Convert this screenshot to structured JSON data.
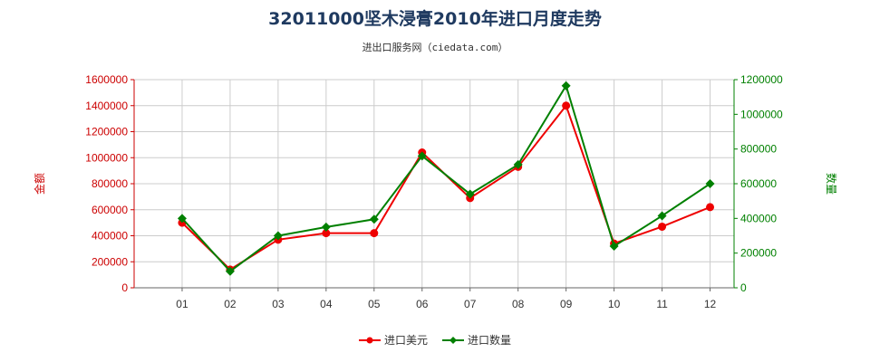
{
  "chart_data": {
    "type": "line",
    "title": "32011000坚木浸膏2010年进口月度走势",
    "subtitle": "进出口服务网（ciedata.com）",
    "x": [
      "01",
      "02",
      "03",
      "04",
      "05",
      "06",
      "07",
      "08",
      "09",
      "10",
      "11",
      "12"
    ],
    "ylabel_left": "金额",
    "ylabel_right": "数量",
    "ylim_left": [
      0,
      1600000
    ],
    "ylim_right": [
      0,
      1200000
    ],
    "yticks_left": [
      "0",
      "200000",
      "400000",
      "600000",
      "800000",
      "1000000",
      "1200000",
      "1400000",
      "1600000"
    ],
    "yticks_right": [
      "0",
      "200000",
      "400000",
      "600000",
      "800000",
      "1000000",
      "1200000"
    ],
    "grid": true,
    "legend": "bottom-center",
    "series": [
      {
        "name": "进口美元",
        "axis": "left",
        "color": "#ee0000",
        "marker": "circle",
        "values": [
          500000,
          140000,
          370000,
          420000,
          420000,
          1040000,
          690000,
          930000,
          1400000,
          340000,
          470000,
          620000
        ]
      },
      {
        "name": "进口数量",
        "axis": "right",
        "color": "#008000",
        "marker": "diamond",
        "values": [
          400000,
          95000,
          300000,
          350000,
          395000,
          760000,
          540000,
          710000,
          1165000,
          240000,
          415000,
          600000
        ]
      }
    ]
  }
}
